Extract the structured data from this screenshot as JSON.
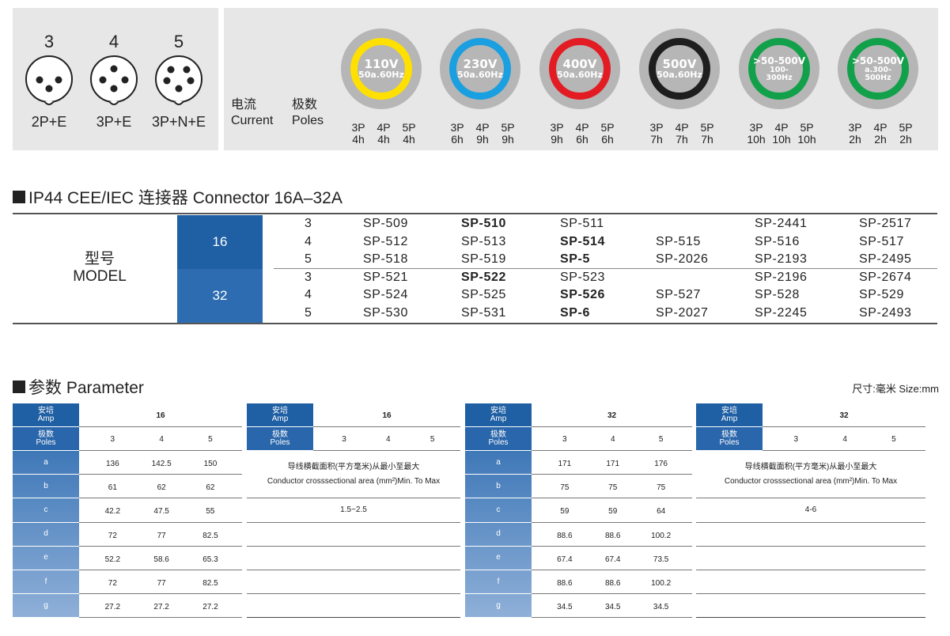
{
  "connectors": [
    {
      "number": "3",
      "code": "2P+E"
    },
    {
      "number": "4",
      "code": "3P+E"
    },
    {
      "number": "5",
      "code": "3P+N+E"
    }
  ],
  "current_label": {
    "cn": "电流",
    "en": "Current"
  },
  "poles_label": {
    "cn": "极数",
    "en": "Poles"
  },
  "voltages": [
    {
      "volt": "110V",
      "freq": "50a.60Hz",
      "color": "#ffe000",
      "poles": [
        "3P",
        "4P",
        "5P"
      ],
      "hours": [
        "4h",
        "4h",
        "4h"
      ]
    },
    {
      "volt": "230V",
      "freq": "50a.60Hz",
      "color": "#1a9fe0",
      "poles": [
        "3P",
        "4P",
        "5P"
      ],
      "hours": [
        "6h",
        "9h",
        "9h"
      ]
    },
    {
      "volt": "400V",
      "freq": "50a.60Hz",
      "color": "#e31b23",
      "poles": [
        "3P",
        "4P",
        "5P"
      ],
      "hours": [
        "9h",
        "6h",
        "6h"
      ]
    },
    {
      "volt": "500V",
      "freq": "50a.60Hz",
      "color": "#1e1e1e",
      "poles": [
        "3P",
        "4P",
        "5P"
      ],
      "hours": [
        "7h",
        "7h",
        "7h"
      ]
    },
    {
      "volt": ">50-500V",
      "freq": "100-\n300Hz",
      "color": "#13a04a",
      "poles": [
        "3P",
        "4P",
        "5P"
      ],
      "hours": [
        "10h",
        "10h",
        "10h"
      ]
    },
    {
      "volt": ">50-500V",
      "freq": "a.300-\n500Hz",
      "color": "#13a04a",
      "poles": [
        "3P",
        "4P",
        "5P"
      ],
      "hours": [
        "2h",
        "2h",
        "2h"
      ]
    }
  ],
  "section1_title": "IP44 CEE/IEC 连接器 Connector  16A–32A",
  "model_label": {
    "cn": "型号",
    "en": "MODEL"
  },
  "model_groups": [
    {
      "amp": "16",
      "rows": [
        {
          "poles": "3",
          "cells": [
            {
              "t": "SP-509",
              "b": false
            },
            {
              "t": "SP-510",
              "b": true
            },
            {
              "t": "SP-511",
              "b": false
            },
            {
              "t": "",
              "b": false
            },
            {
              "t": "SP-2441",
              "b": false
            },
            {
              "t": "SP-2517",
              "b": false
            }
          ]
        },
        {
          "poles": "4",
          "cells": [
            {
              "t": "SP-512",
              "b": false
            },
            {
              "t": "SP-513",
              "b": false
            },
            {
              "t": "SP-514",
              "b": true
            },
            {
              "t": "SP-515",
              "b": false
            },
            {
              "t": "SP-516",
              "b": false
            },
            {
              "t": "SP-517",
              "b": false
            }
          ]
        },
        {
          "poles": "5",
          "cells": [
            {
              "t": "SP-518",
              "b": false
            },
            {
              "t": "SP-519",
              "b": false
            },
            {
              "t": "SP-5",
              "b": true
            },
            {
              "t": "SP-2026",
              "b": false
            },
            {
              "t": "SP-2193",
              "b": false
            },
            {
              "t": "SP-2495",
              "b": false
            }
          ]
        }
      ]
    },
    {
      "amp": "32",
      "rows": [
        {
          "poles": "3",
          "cells": [
            {
              "t": "SP-521",
              "b": false
            },
            {
              "t": "SP-522",
              "b": true
            },
            {
              "t": "SP-523",
              "b": false
            },
            {
              "t": "",
              "b": false
            },
            {
              "t": "SP-2196",
              "b": false
            },
            {
              "t": "SP-2674",
              "b": false
            }
          ]
        },
        {
          "poles": "4",
          "cells": [
            {
              "t": "SP-524",
              "b": false
            },
            {
              "t": "SP-525",
              "b": false
            },
            {
              "t": "SP-526",
              "b": true
            },
            {
              "t": "SP-527",
              "b": false
            },
            {
              "t": "SP-528",
              "b": false
            },
            {
              "t": "SP-529",
              "b": false
            }
          ]
        },
        {
          "poles": "5",
          "cells": [
            {
              "t": "SP-530",
              "b": false
            },
            {
              "t": "SP-531",
              "b": false
            },
            {
              "t": "SP-6",
              "b": true
            },
            {
              "t": "SP-2027",
              "b": false
            },
            {
              "t": "SP-2245",
              "b": false
            },
            {
              "t": "SP-2493",
              "b": false
            }
          ]
        }
      ]
    }
  ],
  "section2_title": "参数 Parameter",
  "size_note": "尺寸:毫米  Size:mm",
  "param_header": {
    "amp_cn": "安培",
    "amp_en": "Amp",
    "poles_cn": "极数",
    "poles_en": "Poles"
  },
  "param_tables": [
    {
      "amp": "16",
      "poles": [
        "3",
        "4",
        "5"
      ],
      "rows": [
        {
          "key": "a",
          "vals": [
            "136",
            "142.5",
            "150"
          ]
        },
        {
          "key": "b",
          "vals": [
            "61",
            "62",
            "62"
          ]
        },
        {
          "key": "c",
          "vals": [
            "42.2",
            "47.5",
            "55"
          ]
        },
        {
          "key": "d",
          "vals": [
            "72",
            "77",
            "82.5"
          ]
        },
        {
          "key": "e",
          "vals": [
            "52.2",
            "58.6",
            "65.3"
          ]
        },
        {
          "key": "f",
          "vals": [
            "72",
            "77",
            "82.5"
          ]
        },
        {
          "key": "g",
          "vals": [
            "27.2",
            "27.2",
            "27.2"
          ]
        }
      ]
    },
    {
      "amp": "16",
      "poles": [
        "3",
        "4",
        "5"
      ],
      "note_cn": "导线横截面积(平方毫米)从最小至最大",
      "note_en": "Conductor crosssectional area (mm²)Min. To Max",
      "range": "1.5~2.5"
    },
    {
      "amp": "32",
      "poles": [
        "3",
        "4",
        "5"
      ],
      "rows": [
        {
          "key": "a",
          "vals": [
            "171",
            "171",
            "176"
          ]
        },
        {
          "key": "b",
          "vals": [
            "75",
            "75",
            "75"
          ]
        },
        {
          "key": "c",
          "vals": [
            "59",
            "59",
            "64"
          ]
        },
        {
          "key": "d",
          "vals": [
            "88.6",
            "88.6",
            "100.2"
          ]
        },
        {
          "key": "e",
          "vals": [
            "67.4",
            "67.4",
            "73.5"
          ]
        },
        {
          "key": "f",
          "vals": [
            "88.6",
            "88.6",
            "100.2"
          ]
        },
        {
          "key": "g",
          "vals": [
            "34.5",
            "34.5",
            "34.5"
          ]
        }
      ]
    },
    {
      "amp": "32",
      "poles": [
        "3",
        "4",
        "5"
      ],
      "note_cn": "导线横截面积(平方毫米)从最小至最大",
      "note_en": "Conductor crosssectional area (mm²)Min. To Max",
      "range": "4-6"
    }
  ],
  "colors": {
    "header_dark": "#1f5fa3",
    "header_light": "#8fb0d8",
    "panel_grey": "#e7e7e7",
    "ring_grey": "#b6b6b6"
  }
}
